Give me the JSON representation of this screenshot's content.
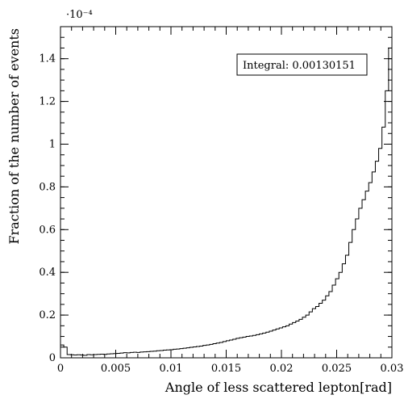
{
  "chart_data": {
    "type": "histogram",
    "xlabel": "Angle of less scattered lepton[rad]",
    "ylabel": "Fraction of the number of events",
    "y_scale_label": "·10⁻⁴",
    "y_scale_factor": 0.0001,
    "legend_text": "Integral: 0.00130151",
    "xlim": [
      0,
      0.03
    ],
    "ylim": [
      0,
      1.55
    ],
    "grid": false,
    "legend_placement": "top-right",
    "x_ticks": [
      "0",
      "0.005",
      "0.01",
      "0.015",
      "0.02",
      "0.025",
      "0.03"
    ],
    "x_tick_values": [
      0,
      0.005,
      0.01,
      0.015,
      0.02,
      0.025,
      0.03
    ],
    "y_ticks": [
      "0",
      "0.2",
      "0.4",
      "0.6",
      "0.8",
      "1",
      "1.2",
      "1.4"
    ],
    "y_tick_values": [
      0,
      0.2,
      0.4,
      0.6,
      0.8,
      1.0,
      1.2,
      1.4
    ],
    "bin_width": 0.0003,
    "bin_start": 0,
    "values": [
      0.06,
      0.05,
      0.015,
      0.014,
      0.013,
      0.014,
      0.013,
      0.012,
      0.015,
      0.014,
      0.015,
      0.016,
      0.017,
      0.016,
      0.018,
      0.019,
      0.02,
      0.021,
      0.022,
      0.024,
      0.023,
      0.025,
      0.026,
      0.025,
      0.027,
      0.028,
      0.029,
      0.03,
      0.031,
      0.033,
      0.034,
      0.036,
      0.037,
      0.038,
      0.04,
      0.041,
      0.043,
      0.045,
      0.047,
      0.049,
      0.051,
      0.053,
      0.055,
      0.058,
      0.06,
      0.063,
      0.066,
      0.069,
      0.072,
      0.076,
      0.08,
      0.083,
      0.087,
      0.091,
      0.094,
      0.097,
      0.1,
      0.102,
      0.105,
      0.108,
      0.112,
      0.116,
      0.12,
      0.125,
      0.13,
      0.135,
      0.14,
      0.145,
      0.15,
      0.158,
      0.165,
      0.172,
      0.18,
      0.19,
      0.2,
      0.215,
      0.23,
      0.24,
      0.255,
      0.27,
      0.29,
      0.31,
      0.34,
      0.37,
      0.4,
      0.44,
      0.48,
      0.54,
      0.6,
      0.65,
      0.7,
      0.74,
      0.78,
      0.82,
      0.87,
      0.92,
      0.98,
      1.08,
      1.25,
      1.45
    ]
  }
}
